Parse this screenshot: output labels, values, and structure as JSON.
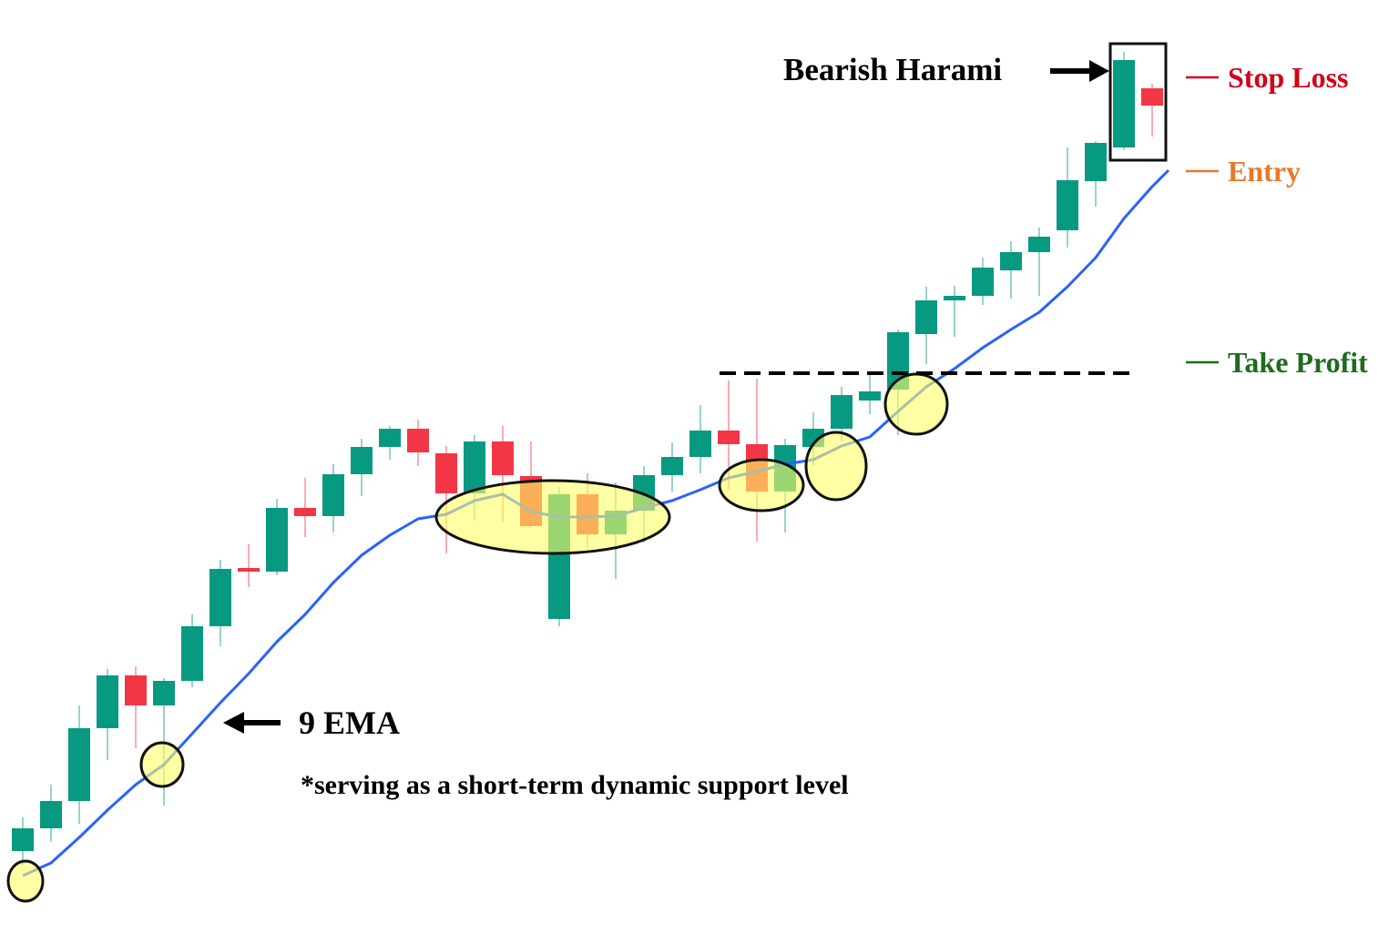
{
  "chart_data": {
    "type": "candlestick",
    "title": "",
    "xlabel": "",
    "ylabel": "",
    "ylim": [
      0,
      100
    ],
    "grid": false,
    "colors": {
      "bullish": "#089981",
      "bearish": "#f23645",
      "ema": "#2962ff",
      "highlight": "#ffff66",
      "stop_loss": "#d0021b",
      "entry": "#e8782a",
      "take_profit": "#1e6b1e"
    },
    "candles": [
      {
        "o": 6.5,
        "c": 9.0,
        "h": 10.2,
        "l": 5.0
      },
      {
        "o": 9.0,
        "c": 12.0,
        "h": 13.8,
        "l": 7.5
      },
      {
        "o": 12.0,
        "c": 20.0,
        "h": 22.5,
        "l": 9.5
      },
      {
        "o": 20.0,
        "c": 25.8,
        "h": 26.5,
        "l": 16.5
      },
      {
        "o": 25.8,
        "c": 22.5,
        "h": 26.8,
        "l": 17.8
      },
      {
        "o": 22.5,
        "c": 25.2,
        "h": 25.5,
        "l": 11.5
      },
      {
        "o": 25.2,
        "c": 31.2,
        "h": 32.5,
        "l": 24.5
      },
      {
        "o": 31.2,
        "c": 37.5,
        "h": 38.5,
        "l": 29.0
      },
      {
        "o": 37.6,
        "c": 37.2,
        "h": 40.2,
        "l": 35.5
      },
      {
        "o": 37.2,
        "c": 44.2,
        "h": 45.2,
        "l": 36.8
      },
      {
        "o": 44.2,
        "c": 43.3,
        "h": 47.5,
        "l": 41.0
      },
      {
        "o": 43.3,
        "c": 47.9,
        "h": 49.0,
        "l": 41.5
      },
      {
        "o": 47.9,
        "c": 50.9,
        "h": 51.8,
        "l": 45.5
      },
      {
        "o": 50.9,
        "c": 52.9,
        "h": 53.2,
        "l": 49.5
      },
      {
        "o": 52.9,
        "c": 50.3,
        "h": 53.9,
        "l": 48.8
      },
      {
        "o": 50.2,
        "c": 45.8,
        "h": 51.0,
        "l": 39.2
      },
      {
        "o": 45.8,
        "c": 51.5,
        "h": 52.2,
        "l": 42.8
      },
      {
        "o": 51.5,
        "c": 47.8,
        "h": 53.2,
        "l": 42.7
      },
      {
        "o": 47.7,
        "c": 42.2,
        "h": 51.5,
        "l": 42.0
      },
      {
        "o": 32.0,
        "c": 45.7,
        "h": 46.5,
        "l": 31.2
      },
      {
        "o": 45.7,
        "c": 41.3,
        "h": 48.0,
        "l": 39.7
      },
      {
        "o": 41.3,
        "c": 43.9,
        "h": 47.0,
        "l": 36.4
      },
      {
        "o": 43.9,
        "c": 47.8,
        "h": 48.8,
        "l": 40.4
      },
      {
        "o": 47.8,
        "c": 49.8,
        "h": 51.4,
        "l": 46.0
      },
      {
        "o": 49.8,
        "c": 52.7,
        "h": 55.5,
        "l": 48.0
      },
      {
        "o": 52.7,
        "c": 51.2,
        "h": 58.2,
        "l": 46.2
      },
      {
        "o": 51.2,
        "c": 46.0,
        "h": 58.4,
        "l": 40.5
      },
      {
        "o": 46.0,
        "c": 51.1,
        "h": 51.8,
        "l": 41.5
      },
      {
        "o": 50.9,
        "c": 52.9,
        "h": 54.7,
        "l": 48.8
      },
      {
        "o": 52.9,
        "c": 56.6,
        "h": 57.5,
        "l": 51.5
      },
      {
        "o": 56.0,
        "c": 57.0,
        "h": 59.2,
        "l": 54.5
      },
      {
        "o": 57.2,
        "c": 63.5,
        "h": 63.8,
        "l": 52.2
      },
      {
        "o": 63.3,
        "c": 67.0,
        "h": 68.5,
        "l": 60.0
      },
      {
        "o": 67.0,
        "c": 67.5,
        "h": 68.6,
        "l": 63.0
      },
      {
        "o": 67.5,
        "c": 70.6,
        "h": 71.7,
        "l": 66.5
      },
      {
        "o": 70.3,
        "c": 72.3,
        "h": 73.5,
        "l": 67.2
      },
      {
        "o": 72.3,
        "c": 74.0,
        "h": 75.0,
        "l": 67.5
      },
      {
        "o": 74.7,
        "c": 80.2,
        "h": 83.8,
        "l": 72.8
      },
      {
        "o": 80.1,
        "c": 84.3,
        "h": 84.5,
        "l": 77.3
      },
      {
        "o": 83.8,
        "c": 93.4,
        "h": 94.3,
        "l": 83.5
      },
      {
        "o": 90.3,
        "c": 88.4,
        "h": 90.8,
        "l": 85.0
      }
    ],
    "ema": {
      "period": 9,
      "values": [
        3.8,
        5.2,
        8.0,
        11.0,
        13.8,
        16.0,
        19.4,
        22.8,
        26.0,
        29.5,
        32.5,
        36.0,
        39.0,
        41.2,
        43.0,
        43.5,
        45.0,
        45.7,
        43.8,
        43.2,
        43.2,
        43.3,
        44.2,
        45.0,
        46.2,
        47.5,
        48.2,
        49.0,
        49.5,
        51.0,
        52.0,
        54.8,
        57.5,
        59.5,
        61.8,
        63.8,
        65.7,
        68.5,
        71.7,
        76.0,
        79.5
      ]
    },
    "levels": {
      "stop_loss": 91.5,
      "entry": 81.2,
      "take_profit": 59.0
    },
    "highlighted_touches": [
      0,
      5,
      17,
      26,
      29,
      31
    ],
    "pattern_candles": [
      39,
      40
    ],
    "annotations": {
      "pattern": "Bearish Harami",
      "stop_loss": "Stop Loss",
      "entry": "Entry",
      "take_profit": "Take Profit",
      "ema": "9 EMA",
      "note": "*serving as a short-term dynamic support level"
    }
  }
}
